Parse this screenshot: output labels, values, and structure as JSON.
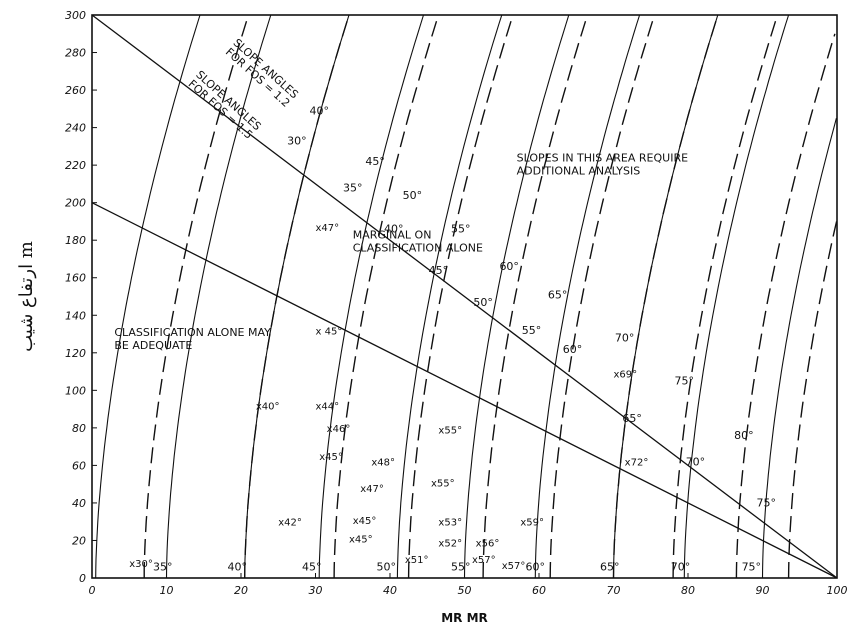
{
  "chart_data": {
    "type": "scatter",
    "xlabel": "MR MR",
    "ylabel": "ارتفاع شيب m",
    "xlim": [
      0,
      100
    ],
    "ylim": [
      0,
      300
    ],
    "x_ticks": [
      "0",
      "10",
      "20",
      "30",
      "40",
      "50",
      "60",
      "70",
      "80",
      "90",
      "100"
    ],
    "y_ticks": [
      "0",
      "20",
      "40",
      "60",
      "80",
      "100",
      "120",
      "140",
      "160",
      "180",
      "200",
      "220",
      "240",
      "260",
      "280",
      "300"
    ],
    "boundary_lines": [
      {
        "x": [
          0,
          100
        ],
        "y": [
          300,
          0
        ]
      },
      {
        "x": [
          0,
          100
        ],
        "y": [
          200,
          0
        ]
      }
    ],
    "region_labels": [
      {
        "lines": [
          "SLOPES IN THIS AREA REQUIRE",
          "ADDITIONAL ANALYSIS"
        ],
        "x": 57,
        "y": 222
      },
      {
        "lines": [
          "MARGINAL ON",
          "CLASSIFICATION ALONE"
        ],
        "x": 35,
        "y": 181
      },
      {
        "lines": [
          "CLASSIFICATION ALONE MAY",
          "BE ADEQUATE"
        ],
        "x": 3,
        "y": 129
      }
    ],
    "legend_labels": [
      {
        "lines": [
          "SLOPE ANGLES",
          "FOR FOS = 1.2"
        ],
        "x": 23,
        "y": 270,
        "rotate": 42
      },
      {
        "lines": [
          "SLOPE ANGLES",
          "FOR FOS = 1.5"
        ],
        "x": 18,
        "y": 253,
        "rotate": 42
      }
    ],
    "series": [
      {
        "name": "FOS = 1.2",
        "style": "dashed",
        "curves": [
          {
            "angle": "35°",
            "x0": 7.0
          },
          {
            "angle": "40°",
            "x0": 20.5
          },
          {
            "angle": "45°",
            "x0": 32.5
          },
          {
            "angle": "50°",
            "x0": 42.5
          },
          {
            "angle": "55°",
            "x0": 52.5
          },
          {
            "angle": "60°",
            "x0": 61.5
          },
          {
            "angle": "65°",
            "x0": 70.0
          },
          {
            "angle": "70°",
            "x0": 78.0
          },
          {
            "angle": "75°",
            "x0": 86.5
          },
          {
            "angle": "80°",
            "x0": 93.5
          }
        ]
      },
      {
        "name": "FOS = 1.5",
        "style": "solid",
        "curves": [
          {
            "angle": "30°",
            "x0": 0.5
          },
          {
            "angle": "35°",
            "x0": 10.0
          },
          {
            "angle": "40°",
            "x0": 20.5
          },
          {
            "angle": "45°",
            "x0": 30.5
          },
          {
            "angle": "50°",
            "x0": 41.0
          },
          {
            "angle": "55°",
            "x0": 50.0
          },
          {
            "angle": "60°",
            "x0": 59.5
          },
          {
            "angle": "65°",
            "x0": 70.0
          },
          {
            "angle": "70°",
            "x0": 79.5
          },
          {
            "angle": "75°",
            "x0": 90.0
          }
        ]
      }
    ],
    "curve_labels": [
      {
        "text": "40°",
        "x": 30.5,
        "y": 247
      },
      {
        "text": "30°",
        "x": 27.5,
        "y": 231
      },
      {
        "text": "45°",
        "x": 38,
        "y": 220
      },
      {
        "text": "35°",
        "x": 35,
        "y": 206
      },
      {
        "text": "50°",
        "x": 43,
        "y": 202
      },
      {
        "text": "40°",
        "x": 40.5,
        "y": 184
      },
      {
        "text": "55°",
        "x": 49.5,
        "y": 184
      },
      {
        "text": "45°",
        "x": 46.5,
        "y": 162
      },
      {
        "text": "60°",
        "x": 56,
        "y": 164
      },
      {
        "text": "50°",
        "x": 52.5,
        "y": 145
      },
      {
        "text": "65°",
        "x": 62.5,
        "y": 149
      },
      {
        "text": "55°",
        "x": 59,
        "y": 130
      },
      {
        "text": "70°",
        "x": 71.5,
        "y": 126
      },
      {
        "text": "60°",
        "x": 64.5,
        "y": 120
      },
      {
        "text": "75°",
        "x": 79.5,
        "y": 103
      },
      {
        "text": "65°",
        "x": 72.5,
        "y": 83
      },
      {
        "text": "80°",
        "x": 87.5,
        "y": 74
      },
      {
        "text": "70°",
        "x": 81,
        "y": 60
      },
      {
        "text": "75°",
        "x": 90.5,
        "y": 38
      },
      {
        "text": "35°",
        "x": 9.5,
        "y": 4
      },
      {
        "text": "40°",
        "x": 19.5,
        "y": 4
      },
      {
        "text": "45°",
        "x": 29.5,
        "y": 4
      },
      {
        "text": "50°",
        "x": 39.5,
        "y": 4
      },
      {
        "text": "55°",
        "x": 49.5,
        "y": 4
      },
      {
        "text": "60°",
        "x": 59.5,
        "y": 4
      },
      {
        "text": "65°",
        "x": 69.5,
        "y": 4
      },
      {
        "text": "70°",
        "x": 79,
        "y": 4
      },
      {
        "text": "75°",
        "x": 88.5,
        "y": 4
      }
    ],
    "points": [
      {
        "label": "x30°",
        "x": 5,
        "y": 8
      },
      {
        "label": "x40°",
        "x": 22,
        "y": 92
      },
      {
        "label": "x44°",
        "x": 30,
        "y": 92
      },
      {
        "label": "x46°",
        "x": 31.5,
        "y": 80
      },
      {
        "label": "x45°",
        "x": 30.5,
        "y": 65
      },
      {
        "label": "x47°",
        "x": 36,
        "y": 48
      },
      {
        "label": "x48°",
        "x": 37.5,
        "y": 62
      },
      {
        "label": "x42°",
        "x": 25,
        "y": 30
      },
      {
        "label": "x45°",
        "x": 35,
        "y": 31
      },
      {
        "label": "x45°",
        "x": 34.5,
        "y": 21
      },
      {
        "label": "x55°",
        "x": 46.5,
        "y": 79
      },
      {
        "label": "x55°",
        "x": 45.5,
        "y": 51
      },
      {
        "label": "x53°",
        "x": 46.5,
        "y": 30
      },
      {
        "label": "x52°",
        "x": 46.5,
        "y": 19
      },
      {
        "label": "x51°",
        "x": 42,
        "y": 10
      },
      {
        "label": "x56°",
        "x": 51.5,
        "y": 19
      },
      {
        "label": "x57°",
        "x": 51,
        "y": 10
      },
      {
        "label": "x57°",
        "x": 55,
        "y": 7
      },
      {
        "label": "x59°",
        "x": 57.5,
        "y": 30
      },
      {
        "label": "x47°",
        "x": 30,
        "y": 187
      },
      {
        "label": "x 45°",
        "x": 30,
        "y": 132
      },
      {
        "label": "x69°",
        "x": 70,
        "y": 109
      },
      {
        "label": "x72°",
        "x": 71.5,
        "y": 62
      }
    ]
  }
}
